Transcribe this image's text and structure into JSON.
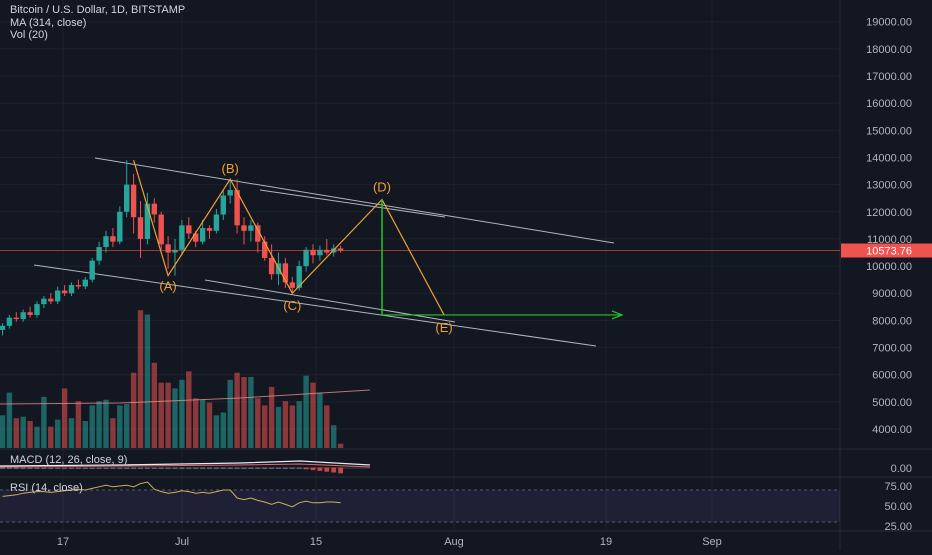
{
  "header": {
    "symbol_line": "Bitcoin / U.S. Dollar, 1D, BITSTAMP",
    "ma_label": "MA (314, close)",
    "vol_label": "Vol (20)"
  },
  "macd": {
    "label": "MACD (12, 26, close, 9)"
  },
  "rsi": {
    "label": "RSI (14, close)"
  },
  "colors": {
    "background": "#131722",
    "up": "#26a69a",
    "down": "#ef5350",
    "pattern": "#f0a030",
    "channel": "#b2b5be",
    "target": "#22c722",
    "last_price_bg": "#ef5350",
    "ma": "#e58c8c",
    "rsi": "#c9b25b"
  },
  "chart_data": {
    "type": "candlestick",
    "price_axis": {
      "ticks": [
        "19000.00",
        "18000.00",
        "17000.00",
        "16000.00",
        "15000.00",
        "14000.00",
        "13000.00",
        "12000.00",
        "11000.00",
        "10000.00",
        "9000.00",
        "8000.00",
        "7000.00",
        "6000.00",
        "5000.00",
        "4000.00"
      ],
      "range": [
        3300,
        19800
      ],
      "last_price": "10573.76",
      "last_price_value": 10573.76
    },
    "x_axis": {
      "ticks": [
        "17",
        "Jul",
        "15",
        "Aug",
        "19",
        "Sep"
      ]
    },
    "candles": [
      {
        "o": 7650,
        "h": 7900,
        "l": 7450,
        "c": 7800
      },
      {
        "o": 7800,
        "h": 8200,
        "l": 7700,
        "c": 8100
      },
      {
        "o": 8100,
        "h": 8300,
        "l": 7950,
        "c": 8050
      },
      {
        "o": 8050,
        "h": 8400,
        "l": 7950,
        "c": 8300
      },
      {
        "o": 8300,
        "h": 8500,
        "l": 8100,
        "c": 8200
      },
      {
        "o": 8200,
        "h": 8700,
        "l": 8100,
        "c": 8600
      },
      {
        "o": 8600,
        "h": 8900,
        "l": 8450,
        "c": 8800
      },
      {
        "o": 8800,
        "h": 9000,
        "l": 8600,
        "c": 8700
      },
      {
        "o": 8700,
        "h": 9250,
        "l": 8600,
        "c": 9100
      },
      {
        "o": 9100,
        "h": 9300,
        "l": 8900,
        "c": 9000
      },
      {
        "o": 9000,
        "h": 9400,
        "l": 8900,
        "c": 9300
      },
      {
        "o": 9300,
        "h": 9500,
        "l": 9150,
        "c": 9250
      },
      {
        "o": 9250,
        "h": 9600,
        "l": 9150,
        "c": 9500
      },
      {
        "o": 9500,
        "h": 10300,
        "l": 9400,
        "c": 10200
      },
      {
        "o": 10200,
        "h": 10900,
        "l": 10050,
        "c": 10700
      },
      {
        "o": 10700,
        "h": 11300,
        "l": 10500,
        "c": 11100
      },
      {
        "o": 11100,
        "h": 11400,
        "l": 10700,
        "c": 10900
      },
      {
        "o": 10900,
        "h": 12200,
        "l": 10800,
        "c": 12000
      },
      {
        "o": 12000,
        "h": 13900,
        "l": 11800,
        "c": 13000
      },
      {
        "o": 13000,
        "h": 13400,
        "l": 11200,
        "c": 11800
      },
      {
        "o": 11800,
        "h": 12400,
        "l": 10300,
        "c": 11000
      },
      {
        "o": 11000,
        "h": 12700,
        "l": 10800,
        "c": 12300
      },
      {
        "o": 12300,
        "h": 12500,
        "l": 11600,
        "c": 11900
      },
      {
        "o": 11900,
        "h": 12000,
        "l": 10600,
        "c": 10800
      },
      {
        "o": 10800,
        "h": 11100,
        "l": 9900,
        "c": 10500
      },
      {
        "o": 10500,
        "h": 11000,
        "l": 9650,
        "c": 10600
      },
      {
        "o": 10600,
        "h": 11700,
        "l": 10400,
        "c": 11500
      },
      {
        "o": 11500,
        "h": 11800,
        "l": 11000,
        "c": 11200
      },
      {
        "o": 11200,
        "h": 11300,
        "l": 10700,
        "c": 10900
      },
      {
        "o": 10900,
        "h": 11700,
        "l": 10800,
        "c": 11400
      },
      {
        "o": 11400,
        "h": 11500,
        "l": 11000,
        "c": 11300
      },
      {
        "o": 11300,
        "h": 12100,
        "l": 11200,
        "c": 11900
      },
      {
        "o": 11900,
        "h": 12800,
        "l": 11700,
        "c": 12600
      },
      {
        "o": 12600,
        "h": 13200,
        "l": 12300,
        "c": 12800
      },
      {
        "o": 12800,
        "h": 13200,
        "l": 11200,
        "c": 11500
      },
      {
        "o": 11500,
        "h": 11800,
        "l": 10800,
        "c": 11300
      },
      {
        "o": 11300,
        "h": 11700,
        "l": 10900,
        "c": 11500
      },
      {
        "o": 11500,
        "h": 11600,
        "l": 10500,
        "c": 10900
      },
      {
        "o": 10900,
        "h": 11100,
        "l": 10200,
        "c": 10300
      },
      {
        "o": 10300,
        "h": 10800,
        "l": 9500,
        "c": 9700
      },
      {
        "o": 9700,
        "h": 10500,
        "l": 9300,
        "c": 10100
      },
      {
        "o": 10100,
        "h": 10300,
        "l": 9200,
        "c": 9400
      },
      {
        "o": 9400,
        "h": 9600,
        "l": 9000,
        "c": 9200
      },
      {
        "o": 9200,
        "h": 10200,
        "l": 9100,
        "c": 10000
      },
      {
        "o": 10000,
        "h": 10700,
        "l": 9800,
        "c": 10600
      },
      {
        "o": 10600,
        "h": 10800,
        "l": 10100,
        "c": 10400
      },
      {
        "o": 10400,
        "h": 10750,
        "l": 10200,
        "c": 10600
      },
      {
        "o": 10600,
        "h": 11000,
        "l": 10400,
        "c": 10500
      },
      {
        "o": 10500,
        "h": 10800,
        "l": 10350,
        "c": 10650
      },
      {
        "o": 10650,
        "h": 10750,
        "l": 10500,
        "c": 10573.76
      }
    ],
    "volume_range": [
      0,
      10
    ],
    "volume": [
      2.3,
      3.9,
      2.1,
      2.2,
      1.9,
      1.5,
      3.6,
      1.5,
      2.0,
      4.2,
      2.1,
      3.3,
      1.9,
      3.0,
      3.3,
      3.4,
      2.1,
      3.0,
      3.1,
      5.3,
      9.7,
      9.4,
      6.0,
      4.6,
      4.6,
      4.2,
      4.8,
      5.4,
      3.5,
      3.4,
      3.2,
      2.3,
      2.5,
      4.8,
      5.3,
      5.0,
      5.0,
      3.5,
      3.0,
      4.3,
      2.9,
      3.3,
      3.0,
      3.3,
      5.1,
      4.6,
      3.9,
      3.0,
      1.6,
      0.3
    ],
    "pattern_points": [
      {
        "label": "(A)",
        "candle": 24,
        "price": 9650
      },
      {
        "label": "(B)",
        "candle": 33,
        "price": 13200
      },
      {
        "label": "(C)",
        "candle": 42,
        "price": 9000
      },
      {
        "label": "(D)",
        "candle": 55,
        "price": 12450
      },
      {
        "label": "(E)",
        "candle": 64,
        "price": 8200
      }
    ],
    "macd_axis": {
      "ticks": [
        "0.00"
      ]
    },
    "rsi_axis": {
      "ticks": [
        "75.00",
        "50.00",
        "25.00"
      ],
      "range": [
        20,
        85
      ]
    },
    "rsi_values": [
      62,
      63,
      64,
      66,
      67,
      68,
      68,
      67,
      68,
      69,
      70,
      71,
      70,
      72,
      74,
      76,
      74,
      75,
      76,
      74,
      78,
      80,
      71,
      68,
      66,
      67,
      69,
      68,
      66,
      67,
      66,
      68,
      70,
      70,
      60,
      58,
      60,
      57,
      55,
      52,
      55,
      52,
      49,
      54,
      56,
      54,
      54,
      55,
      55,
      54
    ]
  }
}
